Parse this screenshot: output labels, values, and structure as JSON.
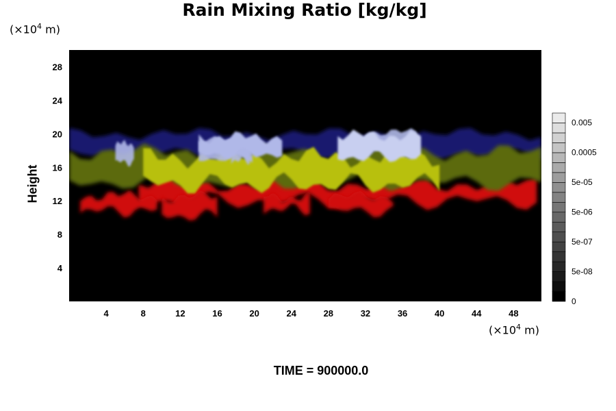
{
  "chart_data": {
    "type": "heatmap",
    "title": "Rain Mixing Ratio [kg/kg]",
    "xlabel": "",
    "ylabel": "Height",
    "x_unit": "(×10",
    "y_unit": "(×10",
    "unit_exp": "4",
    "unit_suffix": " m)",
    "xlim": [
      0,
      51
    ],
    "ylim": [
      0,
      30
    ],
    "x_ticks": [
      4,
      8,
      12,
      16,
      20,
      24,
      28,
      32,
      36,
      40,
      44,
      48
    ],
    "y_ticks": [
      4,
      8,
      12,
      16,
      20,
      24,
      28
    ],
    "colorbar_ticks": [
      "0.005",
      "0.0005",
      "5e-05",
      "5e-06",
      "5e-07",
      "5e-08",
      "0"
    ],
    "colorbar_levels": 19,
    "bands": [
      {
        "label": "blue",
        "color": "#1a1e7a",
        "approx_height": [
          17.5,
          20
        ]
      },
      {
        "label": "light",
        "color": "#b0b8e8",
        "approx_height": [
          17,
          19.5
        ]
      },
      {
        "label": "yellow-green",
        "color": "#b8c010",
        "approx_height": [
          13.5,
          17.5
        ]
      },
      {
        "label": "red",
        "color": "#d01010",
        "approx_height": [
          10.5,
          14
        ]
      }
    ],
    "background_color": "#000000"
  },
  "footer": {
    "time": "TIME = 900000.0"
  }
}
